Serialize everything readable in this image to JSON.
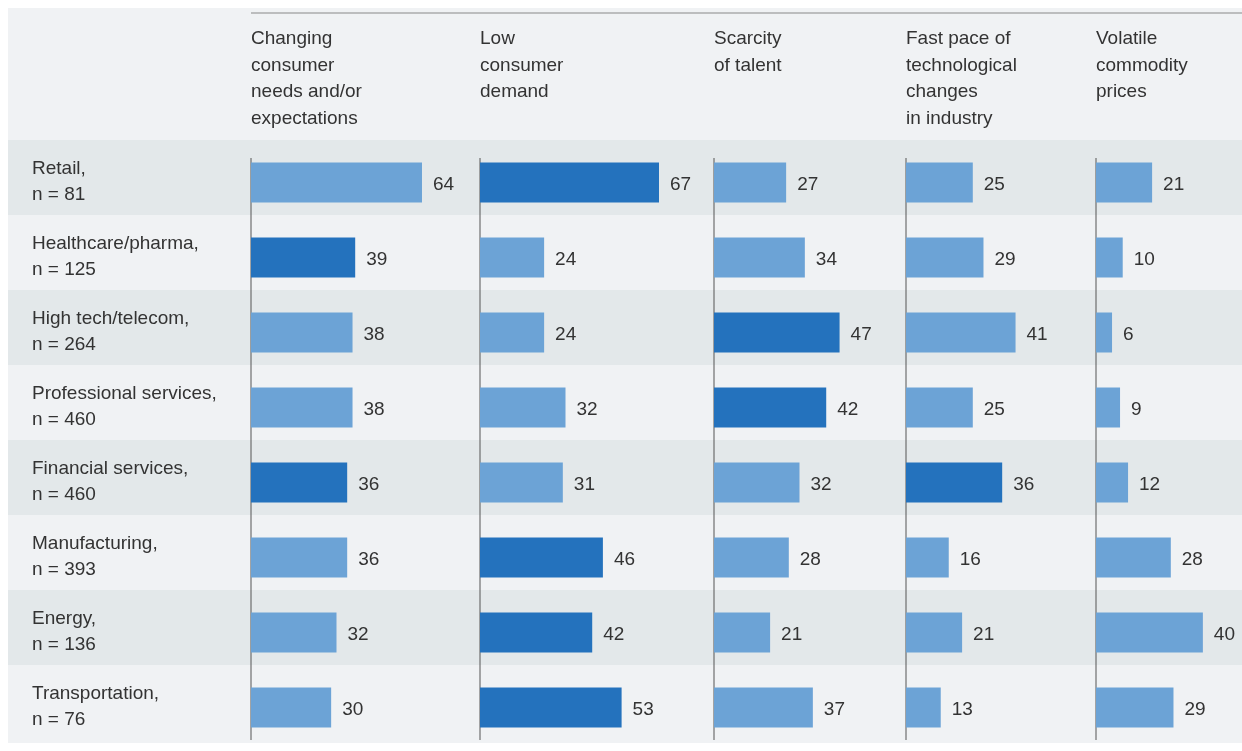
{
  "chart_data": [
    {
      "type": "bar",
      "orientation": "horizontal",
      "title": "Changing\nconsumer\nneeds and/or\nexpectations",
      "categories": [
        "Retail,\nn = 81",
        "Healthcare/pharma,\nn = 125",
        "High tech/telecom,\nn = 264",
        "Professional services,\nn = 460",
        "Financial services,\nn = 460",
        "Manufacturing,\nn = 393",
        "Energy,\nn = 136",
        "Transportation,\nn = 76"
      ],
      "values": [
        64,
        39,
        38,
        38,
        36,
        36,
        32,
        30
      ],
      "colors": [
        "#6ca3d6",
        "#2472bd",
        "#6ca3d6",
        "#6ca3d6",
        "#2472bd",
        "#6ca3d6",
        "#6ca3d6",
        "#6ca3d6"
      ],
      "data_labels": true,
      "tick_labels": "y"
    },
    {
      "type": "bar",
      "orientation": "horizontal",
      "title": "Low\nconsumer\ndemand",
      "categories": [
        null,
        null,
        null,
        null,
        null,
        null,
        null,
        null
      ],
      "values": [
        67,
        24,
        24,
        32,
        31,
        46,
        42,
        53
      ],
      "colors": [
        "#2472bd",
        "#6ca3d6",
        "#6ca3d6",
        "#6ca3d6",
        "#6ca3d6",
        "#2472bd",
        "#2472bd",
        "#2472bd"
      ],
      "data_labels": true,
      "tick_labels": false
    },
    {
      "type": "bar",
      "orientation": "horizontal",
      "title": "Scarcity\nof talent",
      "categories": [
        null,
        null,
        null,
        null,
        null,
        null,
        null,
        null
      ],
      "values": [
        27,
        34,
        47,
        42,
        32,
        28,
        21,
        37
      ],
      "colors": [
        "#6ca3d6",
        "#6ca3d6",
        "#2472bd",
        "#2472bd",
        "#6ca3d6",
        "#6ca3d6",
        "#6ca3d6",
        "#6ca3d6"
      ],
      "data_labels": true,
      "tick_labels": false
    },
    {
      "type": "bar",
      "orientation": "horizontal",
      "title": "Fast pace of\ntechnological\nchanges\nin industry",
      "categories": [
        null,
        null,
        null,
        null,
        null,
        null,
        null,
        null
      ],
      "values": [
        25,
        29,
        41,
        25,
        36,
        16,
        21,
        13
      ],
      "colors": [
        "#6ca3d6",
        "#6ca3d6",
        "#6ca3d6",
        "#6ca3d6",
        "#2472bd",
        "#6ca3d6",
        "#6ca3d6",
        "#6ca3d6"
      ],
      "data_labels": true,
      "tick_labels": false
    },
    {
      "type": "bar",
      "orientation": "horizontal",
      "title": "Volatile\ncommodity\nprices",
      "categories": [
        null,
        null,
        null,
        null,
        null,
        null,
        null,
        null
      ],
      "values": [
        21,
        10,
        6,
        9,
        12,
        28,
        40,
        29
      ],
      "colors": [
        "#6ca3d6",
        "#6ca3d6",
        "#6ca3d6",
        "#6ca3d6",
        "#6ca3d6",
        "#6ca3d6",
        "#6ca3d6",
        "#6ca3d6"
      ],
      "data_labels": true,
      "tick_labels": false
    }
  ]
}
